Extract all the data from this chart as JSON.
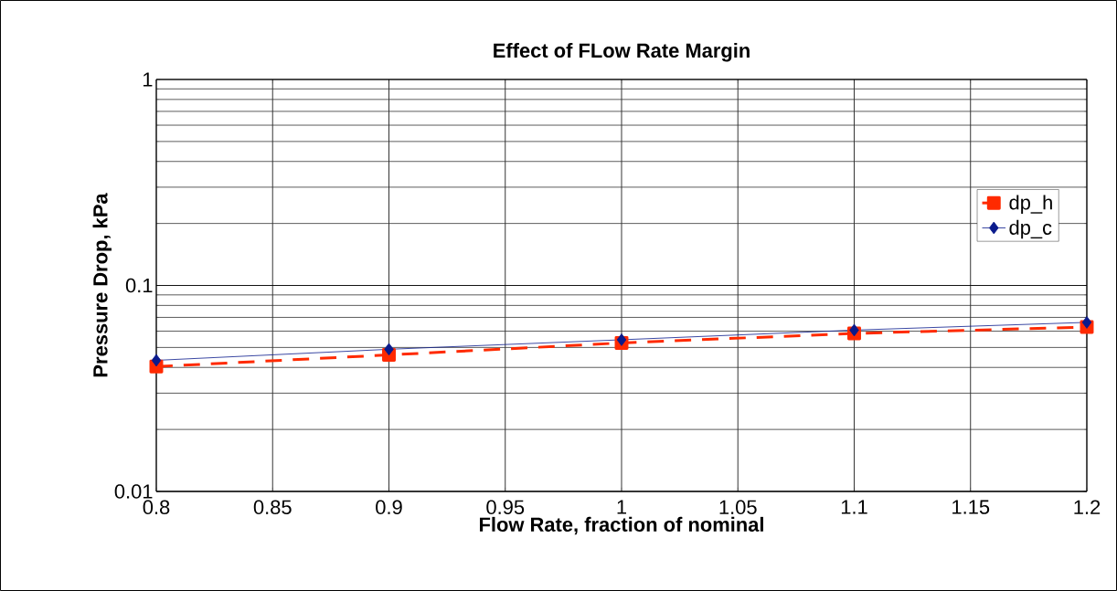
{
  "chart_data": {
    "type": "line",
    "title": "Effect of FLow Rate Margin",
    "xlabel": "Flow Rate, fraction of nominal",
    "ylabel": "Pressure  Drop,  kPa",
    "x": [
      0.8,
      0.9,
      1.0,
      1.1,
      1.2
    ],
    "series": [
      {
        "name": "dp_h",
        "color": "#ff2a00",
        "values": [
          0.0404,
          0.046,
          0.0526,
          0.0585,
          0.0628
        ],
        "marker": "square",
        "line_style": "dashed"
      },
      {
        "name": "dp_c",
        "color": "#0a1a8c",
        "values": [
          0.0433,
          0.049,
          0.0545,
          0.0607,
          0.0662
        ],
        "marker": "diamond",
        "line_style": "solid"
      }
    ],
    "log": "y",
    "ylim": [
      0.01,
      1
    ],
    "yticks": [
      0.01,
      0.1,
      1
    ],
    "xlim": [
      0.8,
      1.2
    ],
    "xticks": [
      0.8,
      0.85,
      0.9,
      0.95,
      1,
      1.05,
      1.1,
      1.15,
      1.2
    ],
    "grid": true,
    "legend": "right"
  }
}
